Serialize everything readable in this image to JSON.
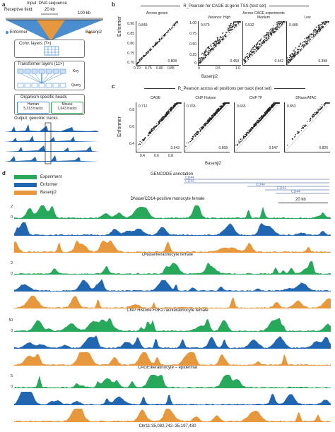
{
  "panel_a": {
    "label": "a",
    "input_title": "Input: DNA sequence",
    "receptive_field": "Receptive field:",
    "scale_20kb": "20 kb",
    "scale_100kb": "100 kb",
    "enformer": "Enformer",
    "basenji2": "Basenji2",
    "conv_layers": "Conv. layers (7×)",
    "transformer_layers": "Transformer layers (11×)",
    "key": "Key",
    "query": "Query",
    "organism_heads": "Organism specific heads",
    "human": "Human",
    "human_tracks": "5,313 tracks",
    "mouse": "Mouse",
    "mouse_tracks": "1,643 tracks",
    "output": "Output: genomic tracks"
  },
  "panel_b": {
    "label": "b",
    "title": "R_Pearson for CAGE at gene TSS (test set)",
    "across_genes": "Across genes",
    "across_experiments": "Across CAGE experiments",
    "ylabel": "Enformer",
    "xlabel": "Basenji2",
    "plots": [
      {
        "title": "",
        "enf": "0.849",
        "bas": "0.808"
      },
      {
        "title": "Variance: High",
        "enf": "0.579",
        "bas": "0.459"
      },
      {
        "title": "Medium",
        "enf": "0.532",
        "bas": "0.442"
      },
      {
        "title": "Low",
        "enf": "0.489",
        "bas": "0.398"
      }
    ],
    "yticks_first": [
      "0.90",
      "0.85",
      "0.80",
      "0.75",
      "0.70"
    ],
    "xticks_first": [
      "0.70",
      "0.75",
      "0.80",
      "0.85"
    ],
    "yticks_other": [
      "1.00",
      "0.75",
      "0.50",
      "0.25",
      "0"
    ],
    "xticks_other": [
      "0",
      "0.5",
      "1.0"
    ]
  },
  "panel_c": {
    "label": "c",
    "title": "R_Pearson across all positions per track (test set)",
    "ylabel": "Enformer",
    "xlabel": "Basenji2",
    "plots": [
      {
        "title": "CAGE",
        "enf": "0.712",
        "bas": "0.643"
      },
      {
        "title": "ChIP Histone",
        "enf": "0.765",
        "bas": "0.668"
      },
      {
        "title": "ChIP TF",
        "enf": "0.665",
        "bas": "0.547"
      },
      {
        "title": "DNase/ATAC",
        "enf": "0.853",
        "bas": "0.826"
      }
    ],
    "yticks": [
      "0.8",
      "0.6",
      "0.4"
    ],
    "xticks": [
      "0.4",
      "0.6",
      "0.8"
    ]
  },
  "panel_d": {
    "label": "d",
    "legend": [
      {
        "name": "Experiment",
        "color": "#27a85a"
      },
      {
        "name": "Enformer",
        "color": "#2166b0"
      },
      {
        "name": "Basenji2",
        "color": "#e8983c"
      }
    ],
    "gencode": "GENCODE annotation",
    "genes": [
      "CD44",
      "CD44",
      "CD44",
      "CD44",
      "CD44",
      "CD44"
    ],
    "scale": "20 kb",
    "sections": [
      {
        "title": "DNase/CD14-positive monocyte female",
        "ticks": [
          "2",
          "0",
          "2",
          "0",
          "2",
          "0"
        ]
      },
      {
        "title": "DNase/keratinocyte female",
        "ticks": [
          "2",
          "0"
        ]
      },
      {
        "title": "ChIP Histone:H3K27ac/keratinocyte female",
        "ticks": [
          "50",
          "0"
        ]
      },
      {
        "title": "CAGE/keratinocyte – epidermal",
        "ticks": [
          "5",
          "0"
        ]
      }
    ],
    "coordinate": "Chr11:35,082,742–35,197,430"
  }
}
